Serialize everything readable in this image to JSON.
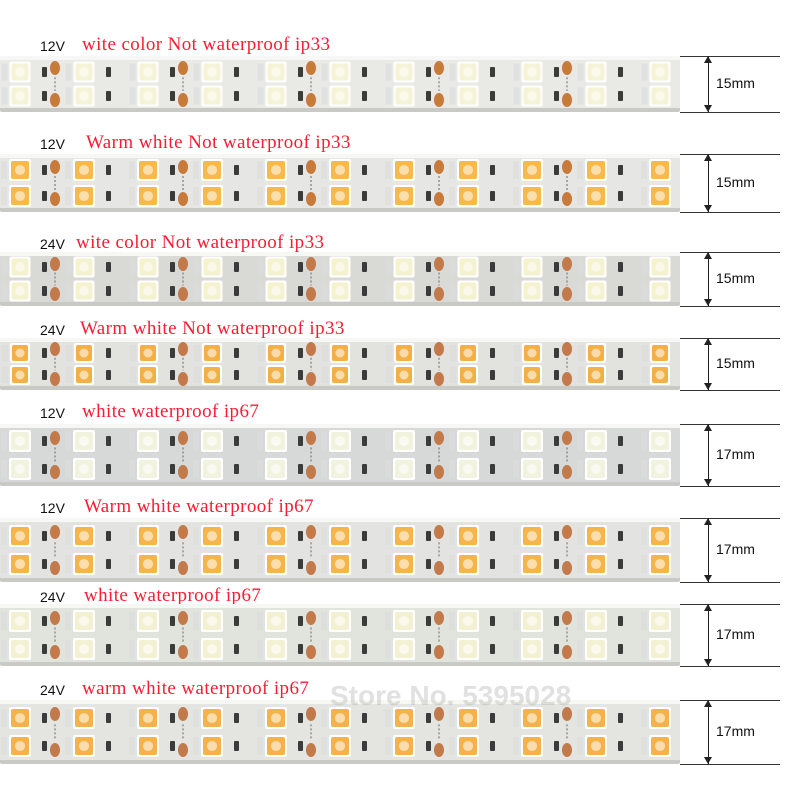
{
  "rows": [
    {
      "voltage": "12V",
      "description": "wite color Not waterproof ip33",
      "width": "15mm",
      "led_color": "#f6f4d8",
      "strip_color": "#e9e9e6",
      "pad_color": "#c87a3a",
      "two_rows": true
    },
    {
      "voltage": "12V",
      "description": "Warm white Not waterproof ip33",
      "width": "15mm",
      "led_color": "#f7b94a",
      "strip_color": "#e6e6e4",
      "pad_color": "#c87a3a",
      "two_rows": true
    },
    {
      "voltage": "24V",
      "description": "wite color Not waterproof ip33",
      "width": "15mm",
      "led_color": "#f4f2cf",
      "strip_color": "#d9dad6",
      "pad_color": "#c27a4a",
      "two_rows": true
    },
    {
      "voltage": "24V",
      "description": "Warm white Not waterproof ip33",
      "width": "15mm",
      "led_color": "#f3b047",
      "strip_color": "#e2e2df",
      "pad_color": "#c27a4a",
      "two_rows": true
    },
    {
      "voltage": "12V",
      "description": "white waterproof ip67",
      "width": "17mm",
      "led_color": "#f1f3df",
      "strip_color": "#d6d9d8",
      "pad_color": "#c27a4a",
      "two_rows": true
    },
    {
      "voltage": "12V",
      "description": "Warm white waterproof ip67",
      "width": "17mm",
      "led_color": "#f6b54a",
      "strip_color": "#e3e4e2",
      "pad_color": "#c27a4a",
      "two_rows": true
    },
    {
      "voltage": "24V",
      "description": "white waterproof ip67",
      "width": "17mm",
      "led_color": "#f3f1d2",
      "strip_color": "#e1e3dd",
      "pad_color": "#c27a4a",
      "two_rows": true
    },
    {
      "voltage": "24V",
      "description": "warm white waterproof ip67",
      "width": "17mm",
      "led_color": "#f5b24a",
      "strip_color": "#e4e4e1",
      "pad_color": "#c27a4a",
      "two_rows": true
    }
  ],
  "watermark": "Store No. 5395028"
}
